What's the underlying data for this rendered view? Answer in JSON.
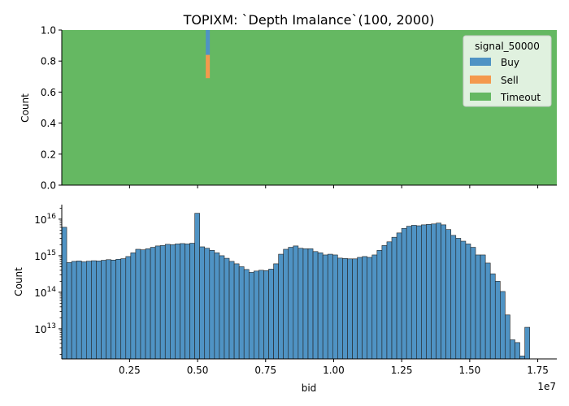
{
  "title": "TOPIXM: `Depth Imalance`(100, 2000)",
  "colors": {
    "buy": "#4f93c4",
    "sell": "#f4994d",
    "timeout": "#65b862",
    "hist_edge": "#222222",
    "axis": "#000000"
  },
  "chart_data": [
    {
      "type": "area",
      "stacked": "fill",
      "ylabel": "Count",
      "ylim": [
        0,
        1
      ],
      "yticks": [
        "0.0",
        "0.2",
        "0.4",
        "0.6",
        "0.8",
        "1.0"
      ],
      "xlim": [
        10000,
        18200000
      ],
      "legend": {
        "title": "signal_50000",
        "placement": "top-right",
        "entries": [
          "Buy",
          "Sell",
          "Timeout"
        ]
      },
      "series": [
        {
          "name": "Timeout",
          "color": "#65b862",
          "default_fraction": 1.0
        },
        {
          "name": "Sell",
          "color": "#f4994d",
          "spike": {
            "x_start": 5300000,
            "x_end": 5450000,
            "y_low": 0.69,
            "y_high": 0.84
          }
        },
        {
          "name": "Buy",
          "color": "#4f93c4",
          "spike": {
            "x_start": 5300000,
            "x_end": 5450000,
            "y_low": 0.84,
            "y_high": 1.0
          }
        }
      ]
    },
    {
      "type": "bar",
      "subtype": "histogram",
      "xlabel": "bid",
      "ylabel": "Count",
      "yscale": "log",
      "xlim": [
        10000,
        18200000
      ],
      "ylim": [
        1500000000000.0,
        2.5e+16
      ],
      "x_offset_label": "1e7",
      "xticks": [
        {
          "value": 2500000,
          "label": "0.25"
        },
        {
          "value": 5000000,
          "label": "0.50"
        },
        {
          "value": 7500000,
          "label": "0.75"
        },
        {
          "value": 10000000,
          "label": "1.00"
        },
        {
          "value": 12500000,
          "label": "1.25"
        },
        {
          "value": 15000000,
          "label": "1.50"
        },
        {
          "value": 17500000,
          "label": "1.75"
        }
      ],
      "yticks": [
        {
          "value": 10000000000000.0,
          "label_base": "10",
          "label_exp": "13"
        },
        {
          "value": 100000000000000.0,
          "label_base": "10",
          "label_exp": "14"
        },
        {
          "value": 1000000000000000.0,
          "label_base": "10",
          "label_exp": "15"
        },
        {
          "value": 1e+16,
          "label_base": "10",
          "label_exp": "16"
        }
      ],
      "bin_edges_start": 10000,
      "bin_width": 181000,
      "values": [
        6000000000000000.0,
        650000000000000.0,
        700000000000000.0,
        720000000000000.0,
        680000000000000.0,
        710000000000000.0,
        730000000000000.0,
        720000000000000.0,
        750000000000000.0,
        780000000000000.0,
        760000000000000.0,
        800000000000000.0,
        830000000000000.0,
        950000000000000.0,
        1200000000000000.0,
        1500000000000000.0,
        1450000000000000.0,
        1550000000000000.0,
        1700000000000000.0,
        1850000000000000.0,
        1900000000000000.0,
        2050000000000000.0,
        2000000000000000.0,
        2100000000000000.0,
        2150000000000000.0,
        2100000000000000.0,
        2200000000000000.0,
        1.45e+16,
        1750000000000000.0,
        1600000000000000.0,
        1400000000000000.0,
        1200000000000000.0,
        1000000000000000.0,
        850000000000000.0,
        700000000000000.0,
        600000000000000.0,
        500000000000000.0,
        420000000000000.0,
        350000000000000.0,
        380000000000000.0,
        400000000000000.0,
        390000000000000.0,
        430000000000000.0,
        600000000000000.0,
        1100000000000000.0,
        1500000000000000.0,
        1700000000000000.0,
        1850000000000000.0,
        1600000000000000.0,
        1550000000000000.0,
        1550000000000000.0,
        1300000000000000.0,
        1200000000000000.0,
        1050000000000000.0,
        1100000000000000.0,
        1050000000000000.0,
        860000000000000.0,
        840000000000000.0,
        820000000000000.0,
        820000000000000.0,
        900000000000000.0,
        950000000000000.0,
        900000000000000.0,
        1050000000000000.0,
        1400000000000000.0,
        1900000000000000.0,
        2400000000000000.0,
        3200000000000000.0,
        4200000000000000.0,
        5600000000000000.0,
        6400000000000000.0,
        6800000000000000.0,
        6600000000000000.0,
        7000000000000000.0,
        7200000000000000.0,
        7400000000000000.0,
        7800000000000000.0,
        7000000000000000.0,
        5200000000000000.0,
        3600000000000000.0,
        3000000000000000.0,
        2500000000000000.0,
        2100000000000000.0,
        1700000000000000.0,
        1050000000000000.0,
        1050000000000000.0,
        630000000000000.0,
        320000000000000.0,
        200000000000000.0,
        105000000000000.0,
        24000000000000.0,
        5000000000000.0,
        4200000000000.0,
        1800000000000.0,
        11000000000000.0
      ]
    }
  ]
}
